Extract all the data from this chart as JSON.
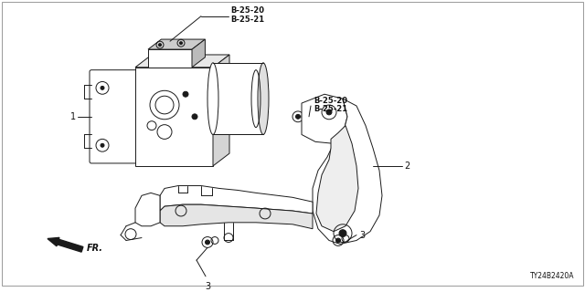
{
  "bg_color": "#ffffff",
  "line_color": "#1a1a1a",
  "text_color": "#111111",
  "diagram_code": "TY24B2420A",
  "lw": 0.7,
  "lw_thick": 1.2,
  "callout_top": "B-25-20\nB-25-21",
  "callout_right": "B-25-20\nB-25-21",
  "label_1": "1",
  "label_2": "2",
  "label_3": "3",
  "fr_label": "FR."
}
